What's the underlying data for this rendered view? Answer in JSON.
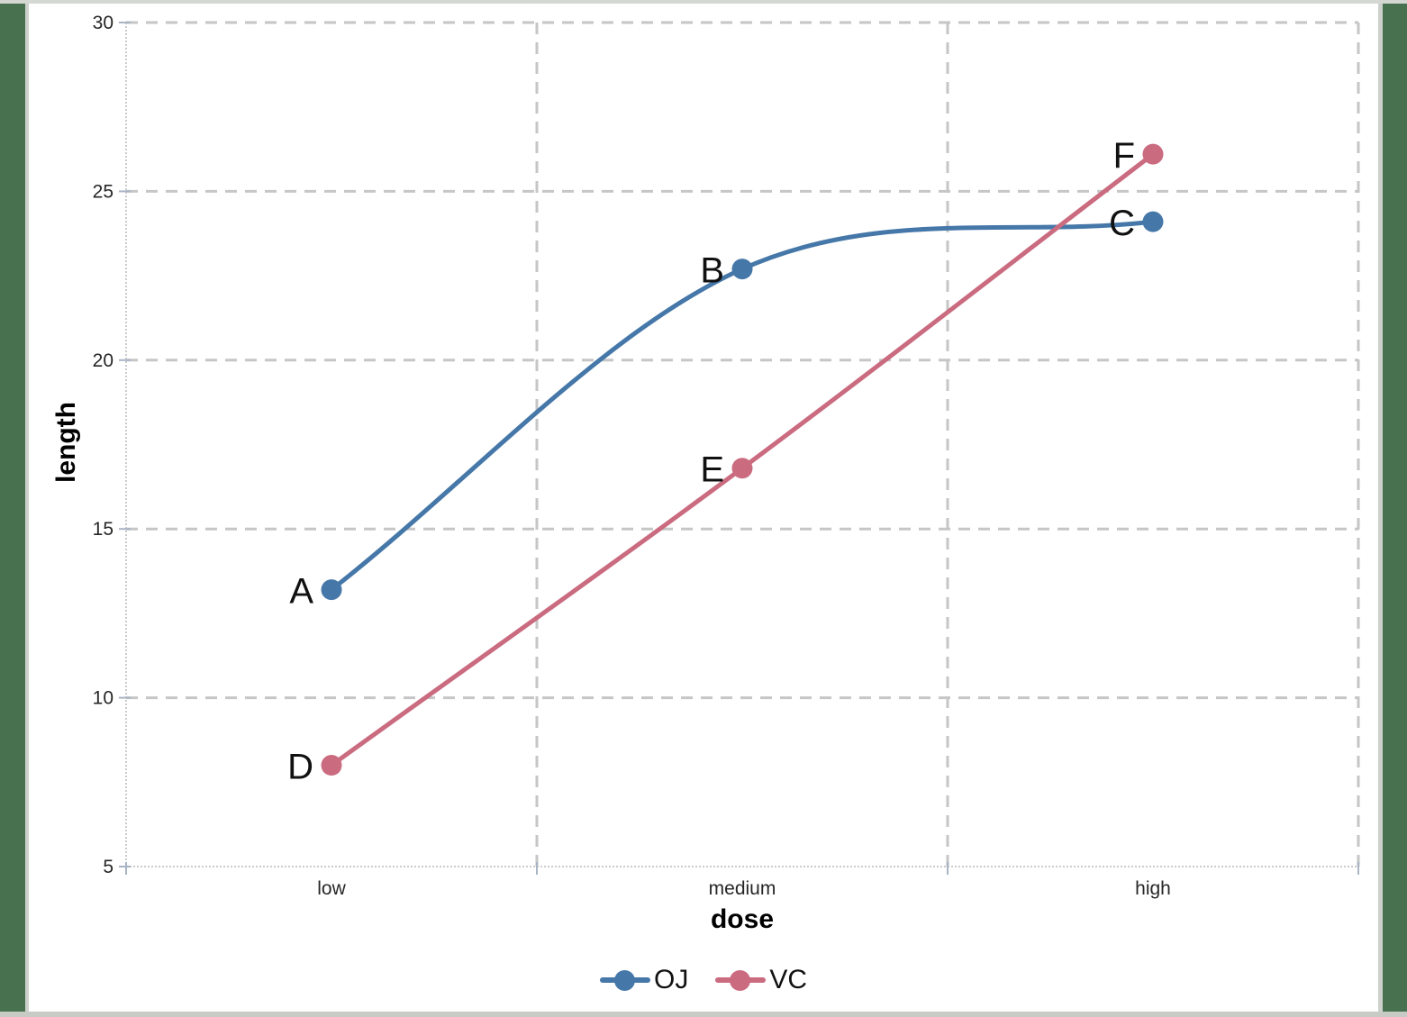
{
  "frame": {
    "background_color": "#487150",
    "page_color": "#FFFFFF",
    "border_color": "#CDD1CB"
  },
  "chart_data": {
    "type": "line",
    "categories": [
      "low",
      "medium",
      "high"
    ],
    "series": [
      {
        "name": "OJ",
        "color": "#4577A8",
        "values": [
          13.2,
          22.7,
          24.1
        ],
        "point_labels": [
          "A",
          "B",
          "C"
        ],
        "line_style": "smooth"
      },
      {
        "name": "VC",
        "color": "#CA6B80",
        "values": [
          8.0,
          16.8,
          26.1
        ],
        "point_labels": [
          "D",
          "E",
          "F"
        ],
        "line_style": "straight"
      }
    ],
    "title": "",
    "xlabel": "dose",
    "ylabel": "length",
    "ylim": [
      5,
      30
    ],
    "yticks": [
      5,
      10,
      15,
      20,
      25,
      30
    ],
    "grid": "dashed",
    "gridline_color": "#C6C6C6",
    "axis_line_color": "#CBCBCB",
    "tick_color": "#A9B4C5",
    "tick_label_color": "#262626",
    "legend_position": "bottom"
  }
}
